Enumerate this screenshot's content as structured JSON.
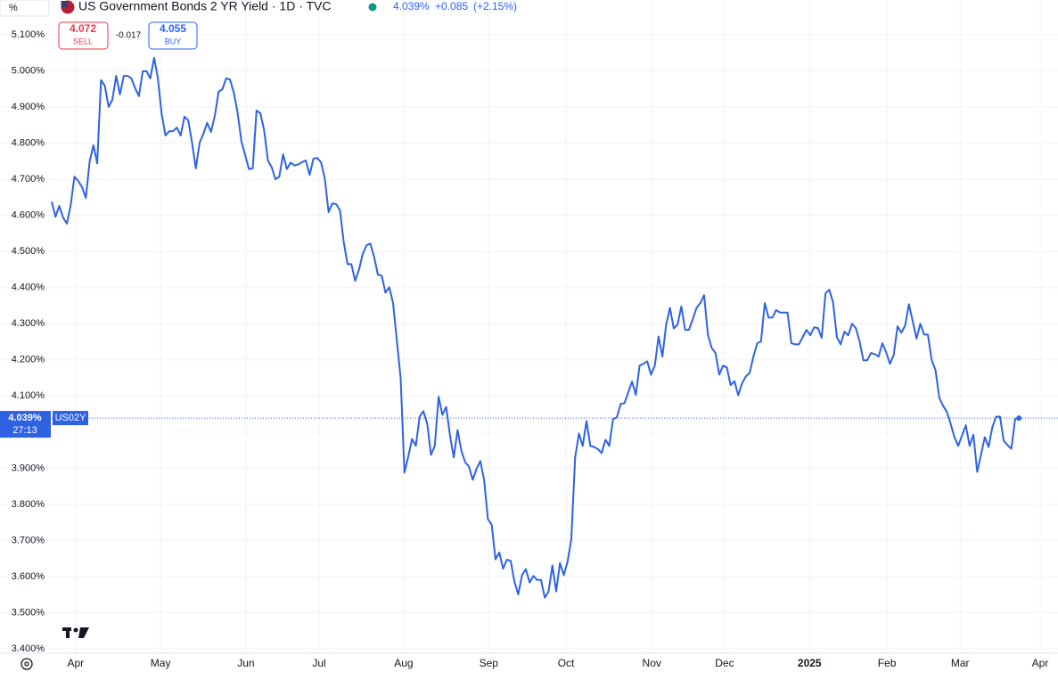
{
  "chart_data": {
    "type": "line",
    "unit_label": "%",
    "title": "US Government Bonds 2 YR Yield · 1D · TVC",
    "header_price": "4.039%",
    "header_change": "+0.085",
    "header_change_pct": "(+2.15%)",
    "sell_price": "4.072",
    "sell_label": "SELL",
    "spread": "-0.017",
    "buy_price": "4.055",
    "buy_label": "BUY",
    "last_value": {
      "value": 4.039,
      "label": "4.039%"
    },
    "countdown": "27:13",
    "symbol": "US02Y",
    "color": "#2f62e3",
    "grid": true,
    "xlim": [
      -13.63,
      265.3
    ],
    "ylim": [
      3.388,
      5.196
    ],
    "xticks": [
      {
        "value": 6.3,
        "label": "Apr"
      },
      {
        "value": 28.7,
        "label": "May"
      },
      {
        "value": 51.2,
        "label": "Jun"
      },
      {
        "value": 70.5,
        "label": "Jul"
      },
      {
        "value": 92.8,
        "label": "Aug"
      },
      {
        "value": 115.2,
        "label": "Sep"
      },
      {
        "value": 135.6,
        "label": "Oct"
      },
      {
        "value": 158.2,
        "label": "Nov"
      },
      {
        "value": 177.4,
        "label": "Dec"
      },
      {
        "value": 199.8,
        "label": "2025"
      },
      {
        "value": 220.2,
        "label": "Feb"
      },
      {
        "value": 239.5,
        "label": "Mar"
      },
      {
        "value": 260.6,
        "label": "Apr"
      }
    ],
    "yticks": [
      {
        "value": 3.4,
        "label": "3.400%"
      },
      {
        "value": 3.5,
        "label": "3.500%"
      },
      {
        "value": 3.6,
        "label": "3.600%"
      },
      {
        "value": 3.7,
        "label": "3.700%"
      },
      {
        "value": 3.8,
        "label": "3.800%"
      },
      {
        "value": 3.9,
        "label": "3.900%"
      },
      {
        "value": 4.0,
        "label": "4.000%"
      },
      {
        "value": 4.1,
        "label": "4.100%"
      },
      {
        "value": 4.2,
        "label": "4.200%"
      },
      {
        "value": 4.3,
        "label": "4.300%"
      },
      {
        "value": 4.4,
        "label": "4.400%"
      },
      {
        "value": 4.5,
        "label": "4.500%"
      },
      {
        "value": 4.6,
        "label": "4.600%"
      },
      {
        "value": 4.7,
        "label": "4.700%"
      },
      {
        "value": 4.8,
        "label": "4.800%"
      },
      {
        "value": 4.9,
        "label": "4.900%"
      },
      {
        "value": 5.0,
        "label": "5.000%"
      },
      {
        "value": 5.1,
        "label": "5.100%"
      }
    ],
    "values": [
      4.638,
      4.596,
      4.626,
      4.594,
      4.577,
      4.628,
      4.707,
      4.695,
      4.678,
      4.648,
      4.749,
      4.794,
      4.744,
      4.974,
      4.959,
      4.9,
      4.92,
      4.986,
      4.935,
      4.986,
      4.986,
      4.979,
      4.952,
      4.93,
      4.999,
      4.999,
      4.979,
      5.036,
      4.979,
      4.88,
      4.821,
      4.833,
      4.833,
      4.843,
      4.821,
      4.873,
      4.863,
      4.801,
      4.73,
      4.801,
      4.826,
      4.856,
      4.831,
      4.875,
      4.942,
      4.949,
      4.979,
      4.976,
      4.94,
      4.885,
      4.806,
      4.767,
      4.728,
      4.73,
      4.89,
      4.883,
      4.836,
      4.752,
      4.733,
      4.7,
      4.707,
      4.769,
      4.728,
      4.746,
      4.738,
      4.741,
      4.747,
      4.752,
      4.712,
      4.757,
      4.759,
      4.747,
      4.702,
      4.609,
      4.633,
      4.631,
      4.614,
      4.525,
      4.465,
      4.465,
      4.419,
      4.449,
      4.493,
      4.517,
      4.522,
      4.485,
      4.436,
      4.433,
      4.386,
      4.401,
      4.357,
      4.253,
      4.149,
      3.888,
      3.932,
      3.981,
      3.962,
      4.043,
      4.058,
      4.023,
      3.937,
      3.962,
      4.098,
      4.048,
      4.07,
      3.991,
      3.93,
      4.006,
      3.949,
      3.917,
      3.905,
      3.868,
      3.898,
      3.92,
      3.868,
      3.759,
      3.744,
      3.648,
      3.667,
      3.622,
      3.647,
      3.644,
      3.586,
      3.551,
      3.604,
      3.621,
      3.584,
      3.602,
      3.591,
      3.591,
      3.542,
      3.559,
      3.631,
      3.559,
      3.638,
      3.604,
      3.641,
      3.705,
      3.93,
      3.996,
      3.962,
      4.031,
      3.962,
      3.959,
      3.953,
      3.942,
      3.979,
      3.962,
      4.036,
      4.041,
      4.078,
      4.08,
      4.11,
      4.14,
      4.103,
      4.184,
      4.189,
      4.196,
      4.159,
      4.184,
      4.265,
      4.209,
      4.298,
      4.344,
      4.287,
      4.298,
      4.348,
      4.283,
      4.283,
      4.312,
      4.344,
      4.357,
      4.379,
      4.27,
      4.233,
      4.219,
      4.159,
      4.184,
      4.179,
      4.13,
      4.141,
      4.102,
      4.135,
      4.154,
      4.164,
      4.209,
      4.246,
      4.251,
      4.357,
      4.317,
      4.317,
      4.338,
      4.331,
      4.331,
      4.331,
      4.246,
      4.243,
      4.243,
      4.263,
      4.283,
      4.268,
      4.29,
      4.288,
      4.261,
      4.384,
      4.394,
      4.359,
      4.263,
      4.243,
      4.278,
      4.268,
      4.3,
      4.288,
      4.251,
      4.199,
      4.199,
      4.219,
      4.216,
      4.209,
      4.246,
      4.221,
      4.189,
      4.214,
      4.293,
      4.275,
      4.295,
      4.354,
      4.307,
      4.259,
      4.3,
      4.27,
      4.27,
      4.199,
      4.172,
      4.095,
      4.073,
      4.056,
      4.023,
      3.986,
      3.962,
      3.991,
      4.019,
      3.962,
      3.993,
      3.89,
      3.937,
      3.986,
      3.959,
      4.014,
      4.043,
      4.043,
      3.976,
      3.964,
      3.954,
      4.036,
      4.039
    ]
  }
}
